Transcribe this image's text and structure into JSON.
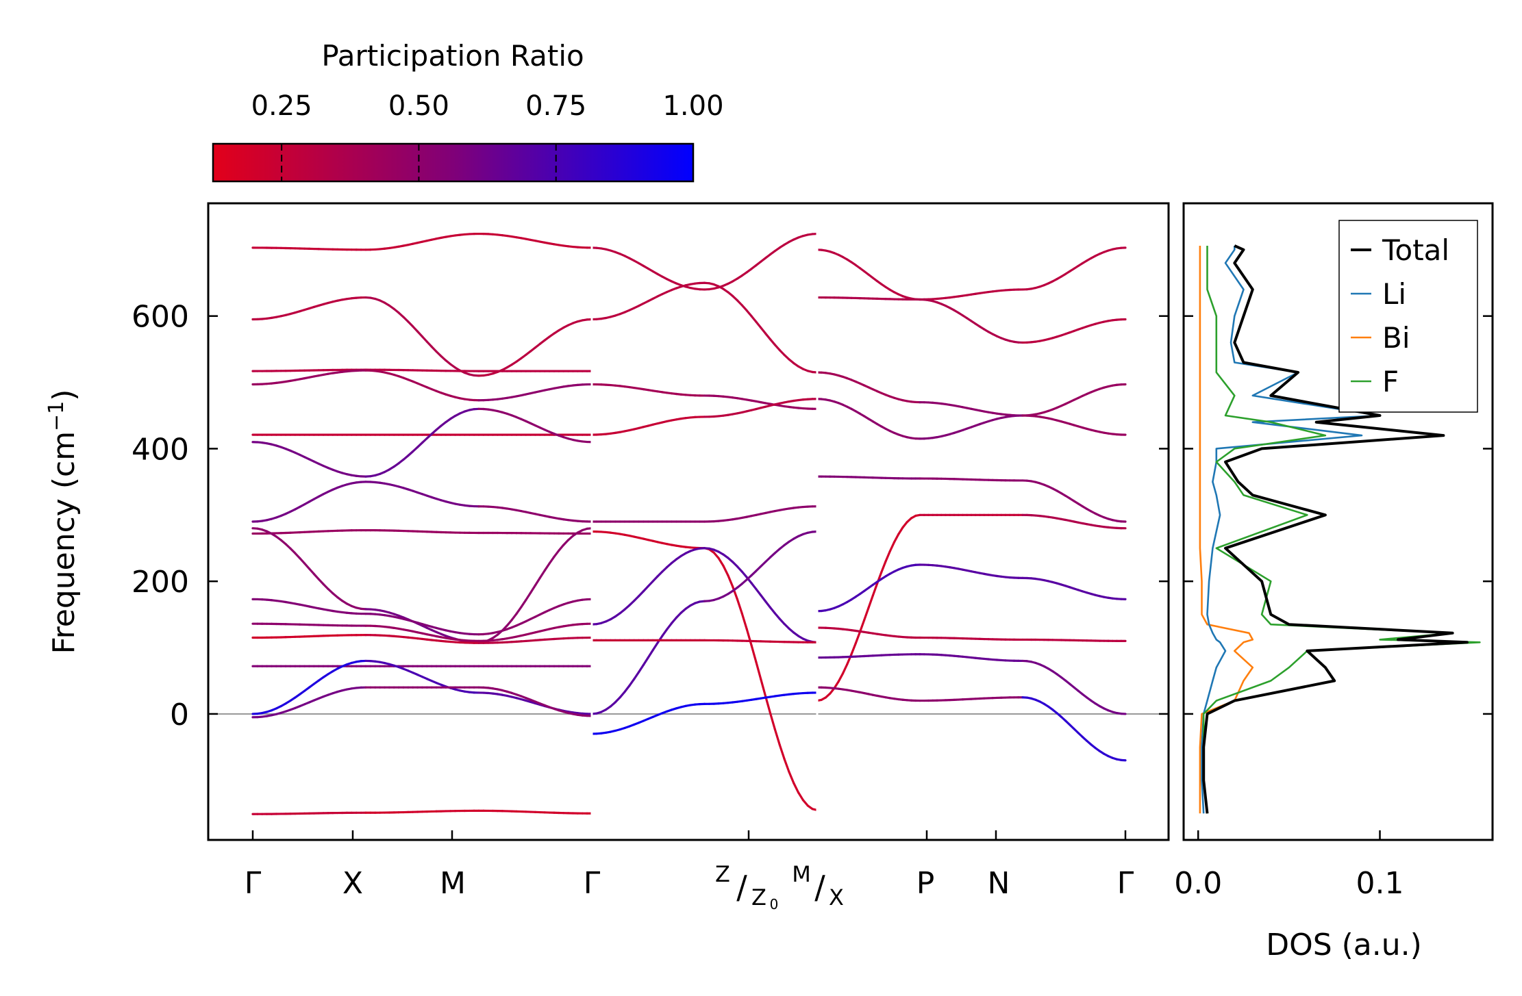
{
  "colorbar": {
    "title": "Participation Ratio",
    "ticks": [
      "0.25",
      "0.50",
      "0.75",
      "1.00"
    ],
    "tick_values": [
      0.25,
      0.5,
      0.75,
      1.0
    ],
    "range": [
      0.125,
      1.0
    ],
    "low_color": "#e2001a",
    "mid_color": "#800078",
    "high_color": "#0000ff"
  },
  "chart_data": [
    {
      "type": "line",
      "title": "",
      "ylabel_base": "Frequency (cm",
      "ylabel_sup": "−1",
      "ylabel_close": ")",
      "xlabel": "",
      "ylim": [
        -190,
        770
      ],
      "yticks": [
        0,
        200,
        400,
        600
      ],
      "ytick_labels": [
        "0",
        "200",
        "400",
        "600"
      ],
      "zero_line": 0,
      "segments": [
        {
          "path": [
            "Γ",
            "X",
            "M",
            "Γ"
          ],
          "ticks": [
            "Γ",
            "X",
            "M",
            "Γ"
          ],
          "tick_pos": [
            0,
            1,
            2,
            3.4
          ]
        },
        {
          "path": [
            "Γ",
            "Z",
            "Z0"
          ],
          "ticks": [
            "Γ",
            "",
            "Z|Z0"
          ],
          "tick_pos": [
            0,
            1.6,
            2.3
          ]
        },
        {
          "path": [
            "M",
            "P",
            "N",
            "Γ"
          ],
          "ticks": [
            "M|X",
            "P",
            "N",
            "Γ"
          ],
          "tick_pos": [
            0,
            1.1,
            1.8,
            3.1
          ]
        }
      ],
      "high_symmetry_labels": {
        "gamma": "Γ",
        "x": "X",
        "m": "M",
        "p": "P",
        "n": "N",
        "z": "Z",
        "z0": "Z",
        "z0_sub": "0",
        "m2": "M",
        "x2": "X",
        "slash": "/"
      },
      "bands": [
        {
          "segment": 0,
          "pr": [
            0.25,
            0.25,
            0.25
          ],
          "y": [
            703,
            700,
            724,
            703
          ]
        },
        {
          "segment": 0,
          "pr": [
            0.3,
            0.35,
            0.3
          ],
          "y": [
            595,
            628,
            510,
            595
          ]
        },
        {
          "segment": 0,
          "pr": [
            0.3,
            0.3,
            0.3
          ],
          "y": [
            517,
            519,
            517,
            517
          ]
        },
        {
          "segment": 0,
          "pr": [
            0.45,
            0.4,
            0.5
          ],
          "y": [
            497,
            518,
            473,
            497
          ]
        },
        {
          "segment": 0,
          "pr": [
            0.25,
            0.25,
            0.25
          ],
          "y": [
            421,
            421,
            421,
            421
          ]
        },
        {
          "segment": 0,
          "pr": [
            0.6,
            0.65,
            0.5
          ],
          "y": [
            410,
            358,
            460,
            410
          ]
        },
        {
          "segment": 0,
          "pr": [
            0.6,
            0.6,
            0.5
          ],
          "y": [
            290,
            350,
            313,
            290
          ]
        },
        {
          "segment": 0,
          "pr": [
            0.45,
            0.45,
            0.45
          ],
          "y": [
            272,
            277,
            273,
            272
          ]
        },
        {
          "segment": 0,
          "pr": [
            0.5,
            0.6,
            0.5
          ],
          "y": [
            280,
            158,
            108,
            280
          ]
        },
        {
          "segment": 0,
          "pr": [
            0.55,
            0.55,
            0.5
          ],
          "y": [
            173,
            151,
            120,
            173
          ]
        },
        {
          "segment": 0,
          "pr": [
            0.5,
            0.45,
            0.45
          ],
          "y": [
            136,
            133,
            110,
            136
          ]
        },
        {
          "segment": 0,
          "pr": [
            0.2,
            0.25,
            0.3
          ],
          "y": [
            115,
            119,
            107,
            115
          ]
        },
        {
          "segment": 0,
          "pr": [
            0.55,
            0.55,
            0.55
          ],
          "y": [
            72,
            72,
            72,
            72
          ]
        },
        {
          "segment": 0,
          "pr": [
            0.9,
            0.75,
            0.7
          ],
          "y": [
            0,
            80,
            32,
            0
          ]
        },
        {
          "segment": 0,
          "pr": [
            0.6,
            0.5,
            0.5
          ],
          "y": [
            -5,
            40,
            40,
            -3
          ]
        },
        {
          "segment": 0,
          "pr": [
            0.25,
            0.2,
            0.2
          ],
          "y": [
            -151,
            -149,
            -146,
            -150
          ]
        },
        {
          "segment": 1,
          "pr": [
            0.3,
            0.3
          ],
          "y": [
            703,
            640,
            724
          ]
        },
        {
          "segment": 1,
          "pr": [
            0.3,
            0.3
          ],
          "y": [
            595,
            650,
            515
          ]
        },
        {
          "segment": 1,
          "pr": [
            0.4,
            0.45
          ],
          "y": [
            497,
            480,
            460
          ]
        },
        {
          "segment": 1,
          "pr": [
            0.25,
            0.3
          ],
          "y": [
            421,
            448,
            475
          ]
        },
        {
          "segment": 1,
          "pr": [
            0.2,
            0.2
          ],
          "y": [
            275,
            250,
            -145
          ]
        },
        {
          "segment": 1,
          "pr": [
            0.5,
            0.5
          ],
          "y": [
            290,
            290,
            313
          ]
        },
        {
          "segment": 1,
          "pr": [
            0.7,
            0.7
          ],
          "y": [
            135,
            250,
            108
          ]
        },
        {
          "segment": 1,
          "pr": [
            0.7,
            0.6
          ],
          "y": [
            0,
            170,
            275
          ]
        },
        {
          "segment": 1,
          "pr": [
            0.95,
            0.95
          ],
          "y": [
            -30,
            15,
            32
          ]
        },
        {
          "segment": 1,
          "pr": [
            0.25,
            0.25
          ],
          "y": [
            111,
            111,
            108
          ]
        },
        {
          "segment": 2,
          "pr": [
            0.3,
            0.3,
            0.3
          ],
          "y": [
            700,
            625,
            640,
            703
          ]
        },
        {
          "segment": 2,
          "pr": [
            0.35,
            0.35,
            0.3
          ],
          "y": [
            628,
            625,
            560,
            595
          ]
        },
        {
          "segment": 2,
          "pr": [
            0.4,
            0.5,
            0.45
          ],
          "y": [
            515,
            470,
            450,
            497
          ]
        },
        {
          "segment": 2,
          "pr": [
            0.5,
            0.55,
            0.45
          ],
          "y": [
            475,
            415,
            450,
            421
          ]
        },
        {
          "segment": 2,
          "pr": [
            0.55,
            0.5,
            0.5
          ],
          "y": [
            358,
            355,
            352,
            290
          ]
        },
        {
          "segment": 2,
          "pr": [
            0.2,
            0.25,
            0.35
          ],
          "y": [
            20,
            300,
            300,
            280
          ]
        },
        {
          "segment": 2,
          "pr": [
            0.75,
            0.7,
            0.7
          ],
          "y": [
            155,
            225,
            205,
            173
          ]
        },
        {
          "segment": 2,
          "pr": [
            0.3,
            0.3,
            0.3
          ],
          "y": [
            130,
            115,
            112,
            110
          ]
        },
        {
          "segment": 2,
          "pr": [
            0.65,
            0.65,
            0.6
          ],
          "y": [
            85,
            90,
            80,
            0
          ]
        },
        {
          "segment": 2,
          "pr": [
            0.5,
            0.5,
            0.85
          ],
          "y": [
            40,
            20,
            25,
            -70
          ]
        }
      ]
    },
    {
      "type": "line",
      "title": "",
      "xlabel": "DOS (a.u.)",
      "ylabel": "",
      "xlim": [
        -0.008,
        0.162
      ],
      "ylim": [
        -190,
        770
      ],
      "xticks": [
        0.0,
        0.1
      ],
      "xtick_labels": [
        "0.0",
        "0.1"
      ],
      "legend_position": "top-right",
      "y": [
        -150,
        -100,
        -50,
        0,
        20,
        50,
        70,
        95,
        108,
        112,
        122,
        135,
        150,
        200,
        250,
        300,
        330,
        350,
        380,
        400,
        420,
        440,
        450,
        480,
        515,
        530,
        560,
        600,
        640,
        680,
        700,
        706
      ],
      "series": [
        {
          "name": "Total",
          "color": "#000000",
          "values": [
            0.005,
            0.003,
            0.003,
            0.005,
            0.02,
            0.075,
            0.07,
            0.06,
            0.148,
            0.11,
            0.14,
            0.05,
            0.04,
            0.035,
            0.015,
            0.07,
            0.03,
            0.022,
            0.015,
            0.035,
            0.135,
            0.065,
            0.1,
            0.04,
            0.055,
            0.025,
            0.02,
            0.025,
            0.03,
            0.02,
            0.025,
            0.02
          ]
        },
        {
          "name": "Li",
          "color": "#1f77b4",
          "values": [
            0.003,
            0.002,
            0.002,
            0.003,
            0.005,
            0.008,
            0.01,
            0.015,
            0.012,
            0.01,
            0.008,
            0.006,
            0.005,
            0.006,
            0.008,
            0.012,
            0.01,
            0.008,
            0.01,
            0.01,
            0.09,
            0.03,
            0.1,
            0.03,
            0.055,
            0.02,
            0.018,
            0.02,
            0.025,
            0.015,
            0.02,
            0.02
          ]
        },
        {
          "name": "Bi",
          "color": "#ff7f0e",
          "values": [
            0.001,
            0.001,
            0.001,
            0.002,
            0.02,
            0.025,
            0.03,
            0.02,
            0.025,
            0.03,
            0.028,
            0.005,
            0.002,
            0.002,
            0.001,
            0.001,
            0.001,
            0.001,
            0.001,
            0.001,
            0.001,
            0.001,
            0.001,
            0.001,
            0.001,
            0.001,
            0.001,
            0.001,
            0.001,
            0.001,
            0.001,
            0.001
          ]
        },
        {
          "name": "F",
          "color": "#2ca02c",
          "values": [
            0.005,
            0.003,
            0.003,
            0.003,
            0.01,
            0.04,
            0.05,
            0.06,
            0.155,
            0.1,
            0.14,
            0.04,
            0.035,
            0.04,
            0.01,
            0.06,
            0.025,
            0.02,
            0.01,
            0.02,
            0.07,
            0.04,
            0.015,
            0.02,
            0.01,
            0.01,
            0.01,
            0.01,
            0.005,
            0.005,
            0.005,
            0.005
          ]
        }
      ]
    }
  ]
}
